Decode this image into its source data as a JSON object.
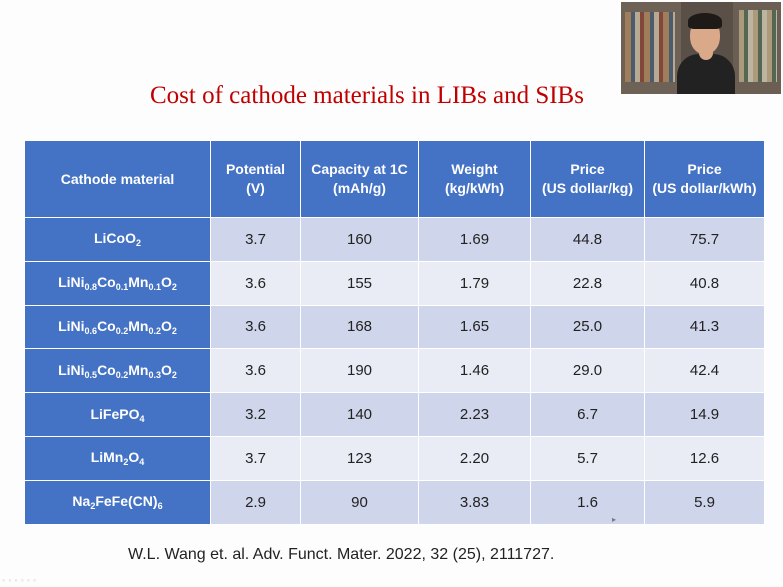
{
  "slide": {
    "title": "Cost of cathode materials in LIBs and SIBs",
    "citation": "W.L. Wang et. al. Adv. Funct. Mater. 2022, 32 (25), 2111727.",
    "colors": {
      "title": "#c00000",
      "header": "#4472c4",
      "row_odd": "#cfd5ea",
      "row_even": "#e9ebf5"
    }
  },
  "table": {
    "headers": {
      "material": "Cathode material",
      "potential_1": "Potential",
      "potential_2": "(V)",
      "capacity_1": "Capacity at 1C",
      "capacity_2": "(mAh/g)",
      "weight_1": "Weight",
      "weight_2": "(kg/kWh)",
      "price_kg_1": "Price",
      "price_kg_2": "(US dollar/kg)",
      "price_kwh_1": "Price",
      "price_kwh_2": "(US dollar/kWh)"
    },
    "rows": [
      {
        "material": "LiCoO2",
        "potential": "3.7",
        "capacity": "160",
        "weight": "1.69",
        "price_kg": "44.8",
        "price_kwh": "75.7"
      },
      {
        "material": "LiNi0.8Co0.1Mn0.1O2",
        "potential": "3.6",
        "capacity": "155",
        "weight": "1.79",
        "price_kg": "22.8",
        "price_kwh": "40.8"
      },
      {
        "material": "LiNi0.6Co0.2Mn0.2O2",
        "potential": "3.6",
        "capacity": "168",
        "weight": "1.65",
        "price_kg": "25.0",
        "price_kwh": "41.3"
      },
      {
        "material": "LiNi0.5Co0.2Mn0.3O2",
        "potential": "3.6",
        "capacity": "190",
        "weight": "1.46",
        "price_kg": "29.0",
        "price_kwh": "42.4"
      },
      {
        "material": "LiFePO4",
        "potential": "3.2",
        "capacity": "140",
        "weight": "2.23",
        "price_kg": "6.7",
        "price_kwh": "14.9"
      },
      {
        "material": "LiMn2O4",
        "potential": "3.7",
        "capacity": "123",
        "weight": "2.20",
        "price_kg": "5.7",
        "price_kwh": "12.6"
      },
      {
        "material": "Na2FeFe(CN)6",
        "potential": "2.9",
        "capacity": "90",
        "weight": "3.83",
        "price_kg": "1.6",
        "price_kwh": "5.9"
      }
    ]
  }
}
